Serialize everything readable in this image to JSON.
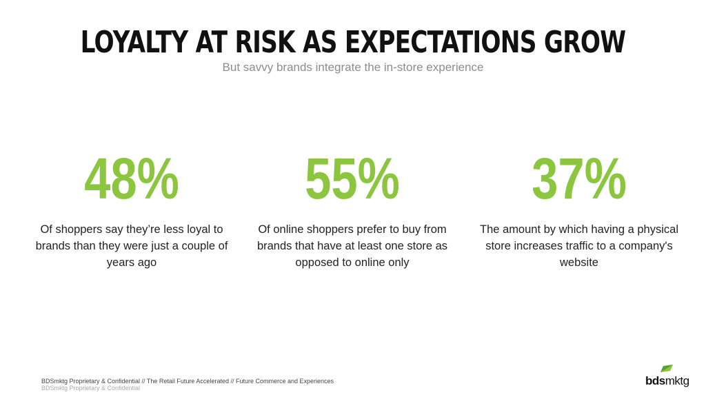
{
  "header": {
    "title": "LOYALTY AT RISK AS EXPECTATIONS GROW",
    "subtitle": "But savvy brands integrate the in-store experience"
  },
  "stats": [
    {
      "value": "48%",
      "text": "Of shoppers say they’re less loyal to brands than they were just a couple of years ago"
    },
    {
      "value": "55%",
      "text": "Of online shoppers prefer to buy from brands that have at least one store as opposed to online only"
    },
    {
      "value": "37%",
      "text": "The amount by which having a physical store increases traffic to a company's website"
    }
  ],
  "footer": {
    "line1": "BDSmktg Proprietary & Confidential // The Retail Future Accelerated // Future Commerce and Experiences",
    "line2": "BDSmktg Proprietary & Confidential"
  },
  "logo": {
    "part1": "bds",
    "part2": "mktg",
    "icon": "green-leaf-icon"
  },
  "colors": {
    "accent": "#8cc63f",
    "title": "#111111",
    "subtitle": "#8c8c8c"
  }
}
